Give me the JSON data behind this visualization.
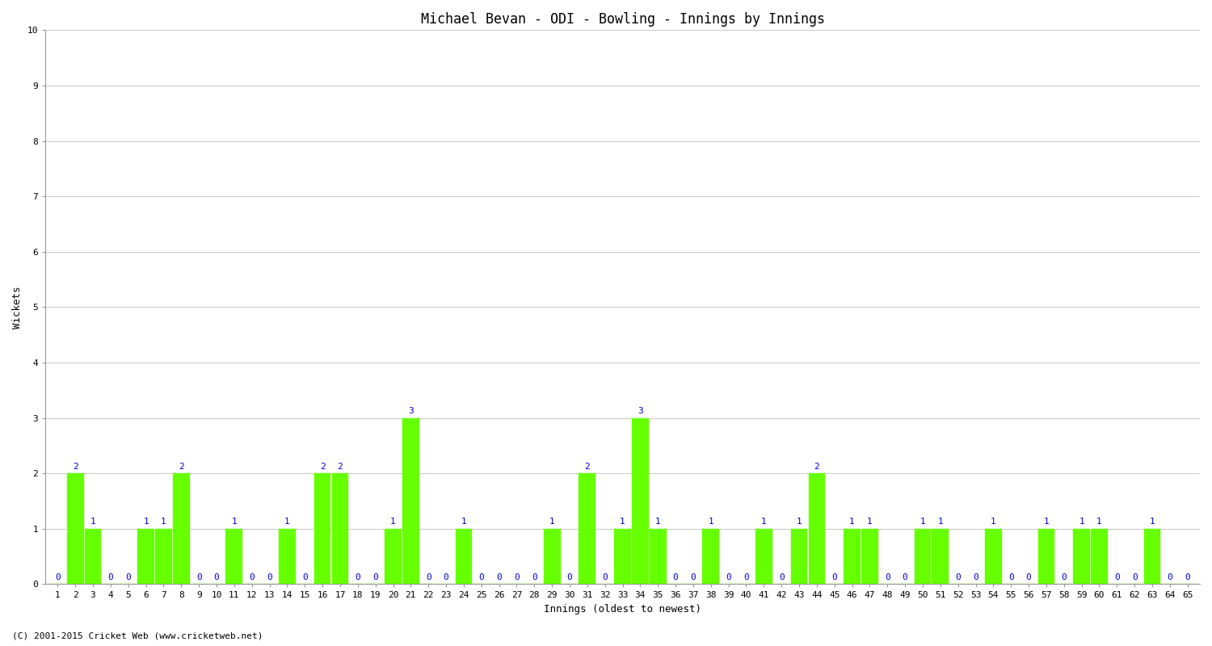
{
  "title": "Michael Bevan - ODI - Bowling - Innings by Innings",
  "xlabel": "Innings (oldest to newest)",
  "ylabel": "Wickets",
  "ylim": [
    0,
    10
  ],
  "yticks": [
    0,
    1,
    2,
    3,
    4,
    5,
    6,
    7,
    8,
    9,
    10
  ],
  "bar_color": "#66ff00",
  "bar_edge_color": "#66ff00",
  "label_color": "#0000cc",
  "background_color": "#ffffff",
  "grid_color": "#cccccc",
  "innings": [
    1,
    2,
    3,
    4,
    5,
    6,
    7,
    8,
    9,
    10,
    11,
    12,
    13,
    14,
    15,
    16,
    17,
    18,
    19,
    20,
    21,
    22,
    23,
    24,
    25,
    26,
    27,
    28,
    29,
    30,
    31,
    32,
    33,
    34,
    35,
    36,
    37,
    38,
    39,
    40,
    41,
    42,
    43,
    44,
    45,
    46,
    47,
    48,
    49,
    50,
    51,
    52,
    53,
    54,
    55,
    56,
    57,
    58,
    59,
    60,
    61,
    62,
    63,
    64,
    65
  ],
  "wickets": [
    0,
    2,
    1,
    0,
    0,
    1,
    1,
    2,
    0,
    0,
    1,
    0,
    0,
    1,
    0,
    2,
    2,
    0,
    0,
    1,
    3,
    0,
    0,
    1,
    0,
    0,
    0,
    0,
    1,
    0,
    2,
    0,
    1,
    3,
    1,
    0,
    0,
    1,
    0,
    0,
    1,
    0,
    1,
    2,
    0,
    1,
    1,
    0,
    0,
    1,
    1,
    0,
    0,
    1,
    0,
    0,
    1,
    0,
    1,
    1,
    0,
    0,
    1,
    0,
    0
  ],
  "footer": "(C) 2001-2015 Cricket Web (www.cricketweb.net)",
  "title_fontsize": 12,
  "axis_label_fontsize": 9,
  "tick_fontsize": 8,
  "bar_label_fontsize": 8,
  "footer_fontsize": 8,
  "bar_width": 0.95
}
